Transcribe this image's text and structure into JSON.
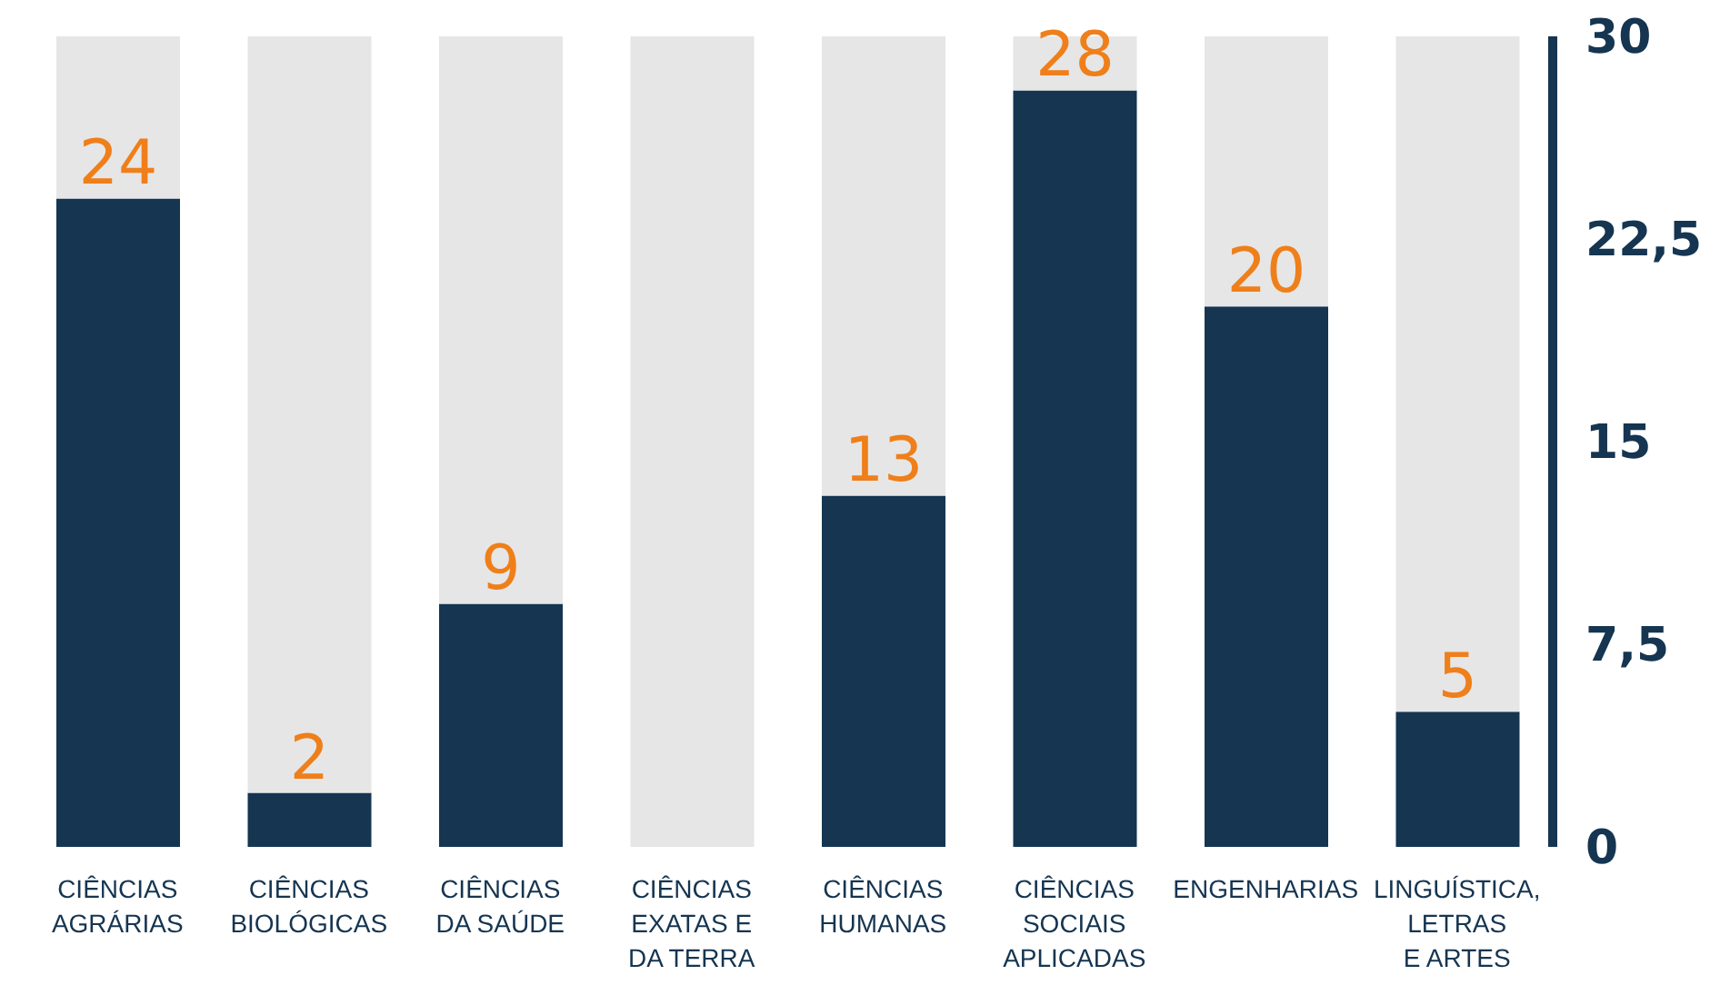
{
  "chart_data": {
    "type": "bar",
    "stacked": true,
    "categories": [
      "CIÊNCIAS\nAGRÁRIAS",
      "CIÊNCIAS\nBIOLÓGICAS",
      "CIÊNCIAS\nDA SAÚDE",
      "CIÊNCIAS\nEXATAS E\nDA TERRA",
      "CIÊNCIAS\nHUMANAS",
      "CIÊNCIAS\nSOCIAIS\nAPLICADAS",
      "ENGENHARIAS",
      "LINGUÍSTICA,\nLETRAS\nE ARTES"
    ],
    "series": [
      {
        "color": "#153551",
        "values": [
          24,
          2,
          9,
          0,
          13,
          28,
          20,
          5
        ],
        "value_labels": [
          "24",
          "2",
          "9",
          null,
          "13",
          "28",
          "20",
          "5"
        ]
      },
      {
        "color": "#e6e6e6",
        "values": [
          6,
          28,
          21,
          30,
          17,
          2,
          10,
          25
        ]
      }
    ],
    "ylim": [
      0,
      30
    ],
    "yticks": [
      0,
      {
        "value": 7.5,
        "label": "7,5"
      },
      15,
      {
        "value": 22.5,
        "label": "22,5"
      },
      30
    ],
    "grid": false,
    "legend": false
  }
}
